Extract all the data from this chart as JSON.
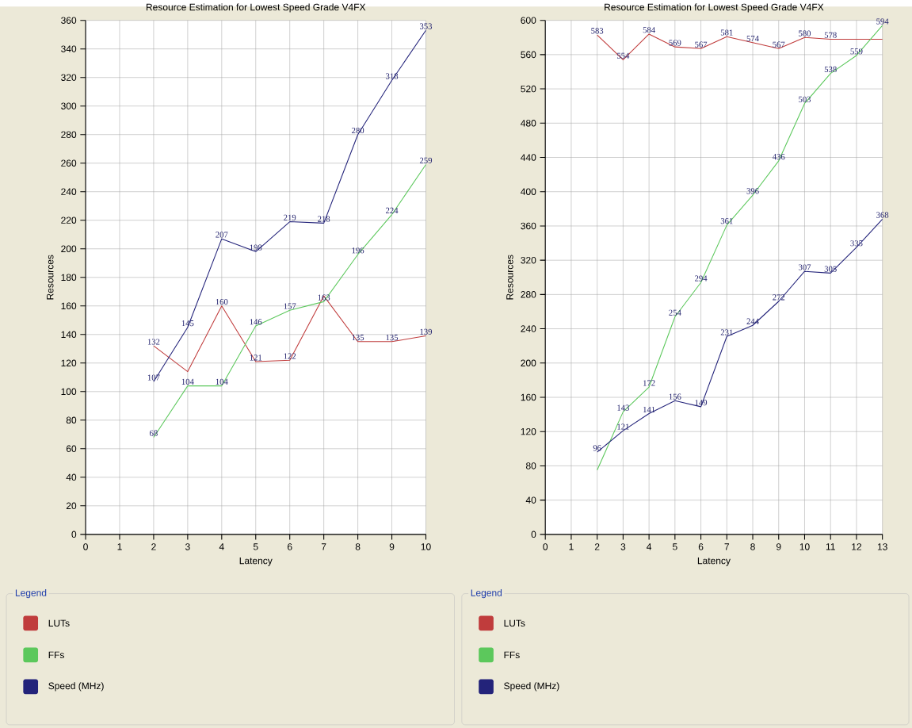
{
  "chart_data": [
    {
      "type": "line",
      "title": "Resource Estimation for Lowest Speed Grade V4FX",
      "xlabel": "Latency",
      "ylabel": "Resources",
      "legend_title": "Legend",
      "legend": "bottom",
      "grid": true,
      "x": [
        2,
        3,
        4,
        5,
        6,
        7,
        8,
        9,
        10
      ],
      "xlim": [
        0,
        10
      ],
      "xticks": [
        0,
        1,
        2,
        3,
        4,
        5,
        6,
        7,
        8,
        9,
        10
      ],
      "ylim": [
        0,
        360
      ],
      "yticks": [
        0,
        20,
        40,
        60,
        80,
        100,
        120,
        140,
        160,
        180,
        200,
        220,
        240,
        260,
        280,
        300,
        320,
        340,
        360
      ],
      "series": [
        {
          "name": "LUTs",
          "color": "#c03c3c",
          "values": [
            132,
            114,
            160,
            121,
            122,
            167,
            135,
            135,
            139
          ],
          "value_labels": [
            "132",
            null,
            "160",
            "121",
            "122",
            null,
            "135",
            "135",
            "139"
          ]
        },
        {
          "name": "FFs",
          "color": "#5cc85c",
          "values": [
            68,
            104,
            104,
            146,
            157,
            163,
            196,
            224,
            259
          ],
          "value_labels": [
            "68",
            "104",
            "104",
            "146",
            "157",
            "163",
            "196",
            "224",
            "259"
          ]
        },
        {
          "name": "Speed (MHz)",
          "color": "#23237a",
          "values": [
            107,
            145,
            207,
            198,
            219,
            218,
            280,
            318,
            353
          ],
          "value_labels": [
            "107",
            "145",
            "207",
            "198",
            "219",
            "218",
            "280",
            "318",
            "353"
          ]
        }
      ]
    },
    {
      "type": "line",
      "title": "Resource Estimation for Lowest Speed Grade V4FX",
      "xlabel": "Latency",
      "ylabel": "Resources",
      "legend_title": "Legend",
      "legend": "bottom",
      "grid": true,
      "x": [
        2,
        3,
        4,
        5,
        6,
        7,
        8,
        9,
        10,
        11,
        12,
        13
      ],
      "xlim": [
        0,
        13
      ],
      "xticks": [
        0,
        1,
        2,
        3,
        4,
        5,
        6,
        7,
        8,
        9,
        10,
        11,
        12,
        13
      ],
      "ylim": [
        0,
        600
      ],
      "yticks": [
        0,
        40,
        80,
        120,
        160,
        200,
        240,
        280,
        320,
        360,
        400,
        440,
        480,
        520,
        560,
        600
      ],
      "series": [
        {
          "name": "LUTs",
          "color": "#c03c3c",
          "values": [
            583,
            554,
            584,
            569,
            567,
            581,
            574,
            567,
            580,
            578,
            578,
            578
          ],
          "value_labels": [
            "583",
            "554",
            "584",
            "569",
            "567",
            "581",
            "574",
            "567",
            "580",
            "578",
            null,
            null
          ]
        },
        {
          "name": "FFs",
          "color": "#5cc85c",
          "values": [
            75,
            143,
            172,
            254,
            294,
            361,
            396,
            436,
            503,
            538,
            559,
            594
          ],
          "value_labels": [
            null,
            "143",
            "172",
            "254",
            "294",
            "361",
            "396",
            "436",
            "503",
            "538",
            "559",
            "594"
          ]
        },
        {
          "name": "Speed (MHz)",
          "color": "#23237a",
          "values": [
            96,
            121,
            141,
            156,
            149,
            231,
            244,
            272,
            307,
            305,
            335,
            368
          ],
          "value_labels": [
            "96",
            "121",
            "141",
            "156",
            "149",
            "231",
            "244",
            "272",
            "307",
            "305",
            "335",
            "368"
          ]
        }
      ]
    }
  ]
}
